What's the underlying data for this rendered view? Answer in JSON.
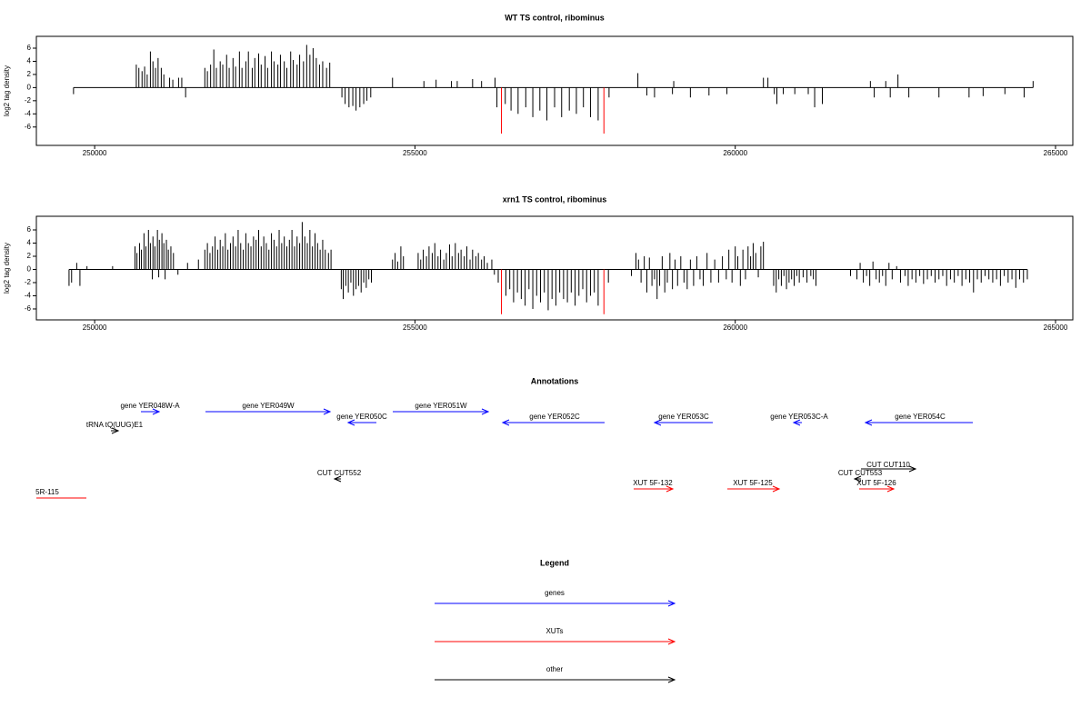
{
  "chart_data": [
    {
      "type": "bar",
      "title": "WT TS control, ribominus",
      "ylabel": "log2 tag density",
      "xlim": [
        249090,
        265270
      ],
      "ylim": [
        -8.8,
        7.8
      ],
      "xticks": [
        250000,
        255000,
        260000,
        265000
      ],
      "yticks": [
        -6,
        -4,
        -2,
        0,
        2,
        4,
        6
      ],
      "series": [
        {
          "color": "#000000",
          "x": [
            249670,
            250650,
            250690,
            250740,
            250780,
            250820,
            250870,
            250910,
            250950,
            250990,
            251040,
            251080,
            251170,
            251220,
            251310,
            251360,
            251420,
            251720,
            251760,
            251810,
            251860,
            251900,
            251960,
            252000,
            252060,
            252100,
            252160,
            252200,
            252260,
            252300,
            252360,
            252400,
            252460,
            252500,
            252560,
            252600,
            252660,
            252700,
            252760,
            252800,
            252860,
            252900,
            252960,
            253000,
            253060,
            253100,
            253160,
            253200,
            253260,
            253310,
            253360,
            253410,
            253460,
            253510,
            253560,
            253620,
            253670,
            253860,
            253910,
            253970,
            254030,
            254080,
            254140,
            254200,
            254250,
            254310,
            254650,
            255140,
            255330,
            255570,
            255660,
            255900,
            256040,
            256250,
            256280,
            256410,
            256500,
            256610,
            256730,
            256840,
            256950,
            257060,
            257180,
            257290,
            257410,
            257520,
            257630,
            257740,
            257860,
            258030,
            258480,
            258620,
            258740,
            259020,
            259040,
            259300,
            259590,
            259870,
            260440,
            260510,
            260610,
            260650,
            260750,
            260930,
            261140,
            261240,
            261360,
            262110,
            262170,
            262350,
            262420,
            262540,
            262710,
            263180,
            263650,
            263870,
            264210,
            264510,
            264650
          ],
          "values": [
            -1,
            3.5,
            3,
            2.5,
            3.2,
            2,
            5.5,
            4,
            3,
            4.5,
            3,
            2,
            1.5,
            1.2,
            1.5,
            1.5,
            -1.5,
            3,
            2.5,
            3.5,
            5.8,
            3,
            4,
            3.5,
            5,
            3,
            4.5,
            3.2,
            5.5,
            3,
            4,
            5.5,
            3,
            4.5,
            5.2,
            3.5,
            4.8,
            3,
            5.5,
            4,
            3.5,
            5,
            4,
            3,
            5.5,
            4.2,
            3.5,
            5,
            4,
            6.5,
            5,
            6,
            4.5,
            3.5,
            4,
            3,
            3.8,
            -1.5,
            -2.5,
            -3,
            -2.8,
            -3.5,
            -3,
            -2.5,
            -2,
            -1.5,
            1.5,
            1,
            1.2,
            1,
            1,
            1.3,
            1,
            1.5,
            -3,
            -2.5,
            -3.5,
            -4,
            -3,
            -4.5,
            -3.5,
            -5,
            -3,
            -4.5,
            -3.5,
            -4,
            -3,
            -4.5,
            -5,
            -1.5,
            2.2,
            -1.2,
            -1.5,
            -1,
            1,
            -1.5,
            -1.2,
            -1,
            1.5,
            1.5,
            -1,
            -2.5,
            -1,
            -1,
            -1,
            -3,
            -2.5,
            1,
            -1.5,
            1,
            -1.5,
            2,
            -1.5,
            -1.5,
            -1.5,
            -1.3,
            -1,
            -1.5,
            1
          ]
        },
        {
          "color": "#ff0000",
          "x": [
            256350,
            257950
          ],
          "values": [
            -7,
            -7
          ]
        }
      ]
    },
    {
      "type": "bar",
      "title": "xrn1 TS control, ribominus",
      "ylabel": "log2 tag density",
      "xlim": [
        249090,
        265270
      ],
      "ylim": [
        -7.66,
        8.07
      ],
      "xticks": [
        250000,
        255000,
        260000,
        265000
      ],
      "yticks": [
        -6,
        -4,
        -2,
        0,
        2,
        4,
        6
      ],
      "series": [
        {
          "color": "#000000",
          "x": [
            249600,
            249640,
            249720,
            249770,
            249880,
            250280,
            250630,
            250660,
            250700,
            250730,
            250770,
            250800,
            250840,
            250870,
            250900,
            250910,
            250940,
            250980,
            251000,
            251010,
            251050,
            251080,
            251100,
            251120,
            251150,
            251190,
            251230,
            251300,
            251450,
            251620,
            251720,
            251760,
            251800,
            251840,
            251880,
            251920,
            251960,
            252000,
            252040,
            252080,
            252120,
            252160,
            252200,
            252240,
            252280,
            252320,
            252360,
            252400,
            252440,
            252480,
            252520,
            252560,
            252600,
            252640,
            252680,
            252720,
            252760,
            252800,
            252840,
            252880,
            252920,
            252960,
            253000,
            253040,
            253080,
            253120,
            253160,
            253200,
            253240,
            253280,
            253320,
            253360,
            253400,
            253440,
            253480,
            253520,
            253560,
            253600,
            253650,
            253690,
            253850,
            253880,
            253920,
            253960,
            254000,
            254040,
            254080,
            254120,
            254160,
            254200,
            254240,
            254280,
            254320,
            254650,
            254690,
            254730,
            254780,
            254820,
            255050,
            255090,
            255130,
            255180,
            255220,
            255270,
            255310,
            255360,
            255400,
            255450,
            255490,
            255540,
            255580,
            255630,
            255680,
            255720,
            255770,
            255810,
            255860,
            255900,
            255950,
            255990,
            256040,
            256080,
            256130,
            256200,
            256240,
            256300,
            256420,
            256480,
            256540,
            256600,
            256660,
            256720,
            256780,
            256840,
            256900,
            256960,
            257020,
            257080,
            257140,
            257200,
            257260,
            257320,
            257380,
            257440,
            257500,
            257560,
            257620,
            257680,
            257740,
            257800,
            257860,
            258020,
            258380,
            258450,
            258490,
            258530,
            258580,
            258620,
            258660,
            258700,
            258740,
            258780,
            258820,
            258860,
            258900,
            258940,
            258980,
            259020,
            259060,
            259100,
            259150,
            259200,
            259250,
            259300,
            259350,
            259400,
            259450,
            259500,
            259560,
            259620,
            259680,
            259740,
            259800,
            259860,
            259900,
            259950,
            260000,
            260040,
            260080,
            260120,
            260160,
            260200,
            260240,
            260280,
            260320,
            260360,
            260400,
            260440,
            260600,
            260640,
            260680,
            260720,
            260760,
            260800,
            260840,
            260880,
            260920,
            260960,
            261000,
            261060,
            261120,
            261180,
            261220,
            261260,
            261800,
            261900,
            261950,
            262000,
            262050,
            262100,
            262150,
            262200,
            262250,
            262300,
            262350,
            262400,
            262450,
            262520,
            262580,
            262650,
            262700,
            262760,
            262820,
            262880,
            262940,
            263000,
            263060,
            263120,
            263180,
            263240,
            263300,
            263360,
            263420,
            263480,
            263540,
            263600,
            263660,
            263720,
            263780,
            263840,
            263900,
            263960,
            264020,
            264080,
            264140,
            264200,
            264260,
            264320,
            264380,
            264440,
            264500,
            264560
          ],
          "values": [
            -2.5,
            -2,
            1,
            -2.5,
            0.5,
            0.5,
            3.5,
            2.5,
            4,
            3,
            5.5,
            3.5,
            6,
            4,
            -1.5,
            5,
            3.5,
            6,
            -1.2,
            4.5,
            5.5,
            4,
            -1.5,
            4.5,
            3,
            3.5,
            2.5,
            -0.8,
            1,
            1.5,
            3,
            4,
            2.5,
            3.5,
            5,
            3,
            4.5,
            3.5,
            5.5,
            3,
            4,
            5,
            3.5,
            6,
            4,
            3,
            5.5,
            4,
            3.5,
            5,
            4.5,
            6,
            3.5,
            5,
            4,
            3,
            5.5,
            4.5,
            3.5,
            6,
            4,
            5,
            3.5,
            4.5,
            6,
            3.5,
            5,
            4,
            7.2,
            5,
            4,
            6,
            3.5,
            5.5,
            4,
            3,
            4.5,
            3,
            2.5,
            3,
            -3,
            -4.5,
            -2.5,
            -3.5,
            -2,
            -4,
            -3,
            -2.5,
            -3.5,
            -2,
            -2.8,
            -1.5,
            -2,
            1.5,
            2.5,
            1.2,
            3.5,
            2,
            2.5,
            1.5,
            3,
            2,
            3.5,
            2.5,
            4,
            2,
            3,
            1.5,
            2.5,
            3.8,
            2,
            4,
            2.5,
            3,
            2,
            3.5,
            1.5,
            3,
            2,
            2.5,
            1.5,
            2,
            1,
            1.5,
            -0.8,
            -2,
            -4,
            -3,
            -5,
            -3.5,
            -4.5,
            -5.5,
            -3,
            -6,
            -4,
            -5,
            -3.5,
            -6.2,
            -4.5,
            -5.5,
            -3.5,
            -4.5,
            -5,
            -3.5,
            -5.5,
            -4,
            -3,
            -5,
            -4,
            -3.5,
            -5.5,
            -2,
            -1,
            2.5,
            1.5,
            -2,
            2,
            -3.5,
            1.8,
            -2.5,
            -1.5,
            -4.5,
            -2.5,
            2,
            -3.5,
            -2,
            2.5,
            -3,
            1.5,
            -2.5,
            2,
            -2,
            -3,
            1.5,
            -2.5,
            2,
            -1.5,
            -2.5,
            2.5,
            -2,
            1.5,
            -2,
            2,
            -1.5,
            3,
            -2,
            3.5,
            2,
            -2.5,
            3,
            -1.5,
            3.5,
            2,
            4,
            2.5,
            -1.2,
            3.5,
            4.2,
            -2.5,
            -3.5,
            -1.5,
            -2.5,
            -1,
            -3,
            -2,
            -1.5,
            -2.5,
            -1,
            -2,
            -1.2,
            -2,
            -1,
            -1.5,
            -2.5,
            -1,
            -1.5,
            1,
            -2,
            -1,
            -2.5,
            1.2,
            -1.5,
            -2,
            -1,
            -2.5,
            1,
            -1.5,
            0.5,
            -2,
            -1,
            -2.5,
            -1.5,
            -2,
            -1,
            -2.2,
            -1.5,
            -1,
            -2,
            -1.5,
            -1,
            -2.5,
            -1.5,
            -2,
            -1,
            -2.5,
            -1.5,
            -2,
            -3.5,
            -1.5,
            -2,
            -1,
            -1.5,
            -2,
            -1.5,
            -2.5,
            -1,
            -2,
            -1.5,
            -2.8,
            -1.5,
            -2,
            -1.5
          ]
        },
        {
          "color": "#ff0000",
          "x": [
            256350,
            257950
          ],
          "values": [
            -6.8,
            -6.8
          ]
        }
      ]
    }
  ],
  "annotations": {
    "title": "Annotations",
    "items": [
      {
        "label": "gene YER048W-A",
        "color": "#0000ff"
      },
      {
        "label": "gene YER049W",
        "color": "#0000ff"
      },
      {
        "label": "gene YER050C",
        "color": "#0000ff"
      },
      {
        "label": "gene YER051W",
        "color": "#0000ff"
      },
      {
        "label": "gene YER052C",
        "color": "#0000ff"
      },
      {
        "label": "gene YER053C",
        "color": "#0000ff"
      },
      {
        "label": "gene YER053C-A",
        "color": "#0000ff"
      },
      {
        "label": "gene YER054C",
        "color": "#0000ff"
      },
      {
        "label": "tRNA tQ(UUG)E1",
        "color": "#000000"
      },
      {
        "label": "CUT CUT552",
        "color": "#000000"
      },
      {
        "label": "CUT CUT110",
        "color": "#000000"
      },
      {
        "label": "CUT CUT553",
        "color": "#000000"
      },
      {
        "label": "XUT 5F-132",
        "color": "#ff0000"
      },
      {
        "label": "XUT 5F-125",
        "color": "#ff0000"
      },
      {
        "label": "XUT 5F-126",
        "color": "#ff0000"
      },
      {
        "label": "5R-115",
        "color": "#ff0000"
      }
    ]
  },
  "legend": {
    "title": "Legend",
    "items": [
      {
        "label": "genes",
        "color": "#0000ff"
      },
      {
        "label": "XUTs",
        "color": "#ff0000"
      },
      {
        "label": "other",
        "color": "#000000"
      }
    ]
  }
}
